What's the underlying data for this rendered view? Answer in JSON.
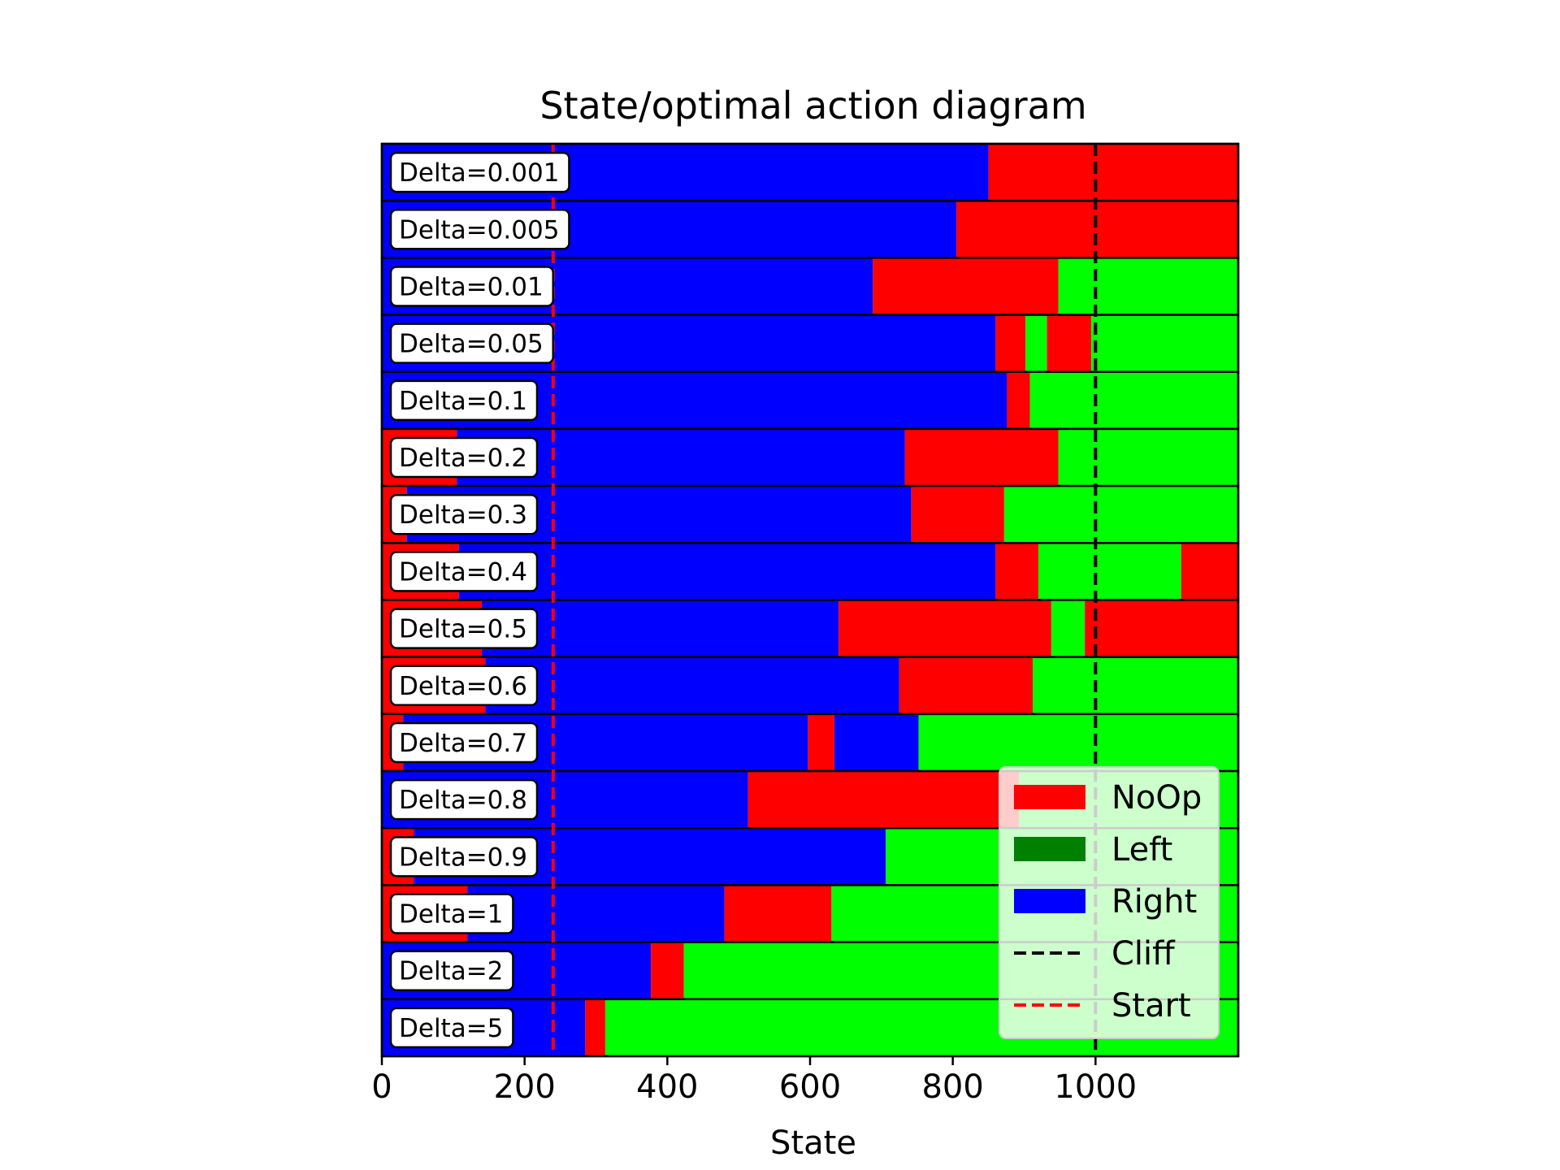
{
  "chart_data": {
    "type": "bar",
    "orientation": "horizontal-stacked-segments",
    "title": "State/optimal action diagram",
    "xlabel": "State",
    "ylabel": "",
    "xlim": [
      0,
      1200
    ],
    "xticks": [
      0,
      200,
      400,
      600,
      800,
      1000
    ],
    "grid": false,
    "legend_position": "lower-right",
    "colors": {
      "NoOp": "#ff0000",
      "Left": "#008000",
      "Right": "#0000ff",
      "LeftBar": "#00ff00",
      "Cliff": "#000000",
      "Start": "#ff0000"
    },
    "legend": [
      {
        "label": "NoOp",
        "kind": "patch",
        "color": "#ff0000"
      },
      {
        "label": "Left",
        "kind": "patch",
        "color": "#008000"
      },
      {
        "label": "Right",
        "kind": "patch",
        "color": "#0000ff"
      },
      {
        "label": "Cliff",
        "kind": "dashed-line",
        "color": "#000000"
      },
      {
        "label": "Start",
        "kind": "dashed-line",
        "color": "#ff0000"
      }
    ],
    "reference_lines": {
      "cliff": 1000,
      "start": 240
    },
    "rows": [
      {
        "label": "Delta=0.001",
        "segments": [
          [
            "Right",
            0,
            850
          ],
          [
            "NoOp",
            850,
            1200
          ]
        ]
      },
      {
        "label": "Delta=0.005",
        "segments": [
          [
            "Right",
            0,
            805
          ],
          [
            "NoOp",
            805,
            1200
          ]
        ]
      },
      {
        "label": "Delta=0.01",
        "segments": [
          [
            "Right",
            0,
            688
          ],
          [
            "NoOp",
            688,
            948
          ],
          [
            "Left",
            948,
            1200
          ]
        ]
      },
      {
        "label": "Delta=0.05",
        "segments": [
          [
            "Right",
            0,
            860
          ],
          [
            "NoOp",
            860,
            902
          ],
          [
            "Left",
            902,
            932
          ],
          [
            "NoOp",
            932,
            994
          ],
          [
            "Left",
            994,
            1200
          ]
        ]
      },
      {
        "label": "Delta=0.1",
        "segments": [
          [
            "Right",
            0,
            876
          ],
          [
            "NoOp",
            876,
            908
          ],
          [
            "Left",
            908,
            1200
          ]
        ]
      },
      {
        "label": "Delta=0.2",
        "segments": [
          [
            "NoOp",
            0,
            105
          ],
          [
            "Right",
            105,
            733
          ],
          [
            "NoOp",
            733,
            948
          ],
          [
            "Left",
            948,
            1200
          ]
        ]
      },
      {
        "label": "Delta=0.3",
        "segments": [
          [
            "NoOp",
            0,
            35
          ],
          [
            "Right",
            35,
            742
          ],
          [
            "NoOp",
            742,
            872
          ],
          [
            "Left",
            872,
            1200
          ]
        ]
      },
      {
        "label": "Delta=0.4",
        "segments": [
          [
            "NoOp",
            0,
            108
          ],
          [
            "Right",
            108,
            860
          ],
          [
            "NoOp",
            860,
            920
          ],
          [
            "Left",
            920,
            1120
          ],
          [
            "NoOp",
            1120,
            1200
          ]
        ]
      },
      {
        "label": "Delta=0.5",
        "segments": [
          [
            "NoOp",
            0,
            140
          ],
          [
            "Right",
            140,
            640
          ],
          [
            "NoOp",
            640,
            938
          ],
          [
            "Left",
            938,
            985
          ],
          [
            "NoOp",
            985,
            1200
          ]
        ]
      },
      {
        "label": "Delta=0.6",
        "segments": [
          [
            "NoOp",
            0,
            145
          ],
          [
            "Right",
            145,
            725
          ],
          [
            "NoOp",
            725,
            912
          ],
          [
            "Left",
            912,
            1200
          ]
        ]
      },
      {
        "label": "Delta=0.7",
        "segments": [
          [
            "NoOp",
            0,
            30
          ],
          [
            "Right",
            30,
            597
          ],
          [
            "NoOp",
            597,
            634
          ],
          [
            "Right",
            634,
            752
          ],
          [
            "Left",
            752,
            1200
          ]
        ]
      },
      {
        "label": "Delta=0.8",
        "segments": [
          [
            "Right",
            0,
            513
          ],
          [
            "NoOp",
            513,
            893
          ],
          [
            "Left",
            893,
            1200
          ]
        ]
      },
      {
        "label": "Delta=0.9",
        "segments": [
          [
            "NoOp",
            0,
            45
          ],
          [
            "Right",
            45,
            706
          ],
          [
            "Left",
            706,
            1200
          ]
        ]
      },
      {
        "label": "Delta=1",
        "segments": [
          [
            "NoOp",
            0,
            120
          ],
          [
            "Right",
            120,
            480
          ],
          [
            "NoOp",
            480,
            630
          ],
          [
            "Left",
            630,
            1200
          ]
        ]
      },
      {
        "label": "Delta=2",
        "segments": [
          [
            "Right",
            0,
            377
          ],
          [
            "NoOp",
            377,
            423
          ],
          [
            "Left",
            423,
            1200
          ]
        ]
      },
      {
        "label": "Delta=5",
        "segments": [
          [
            "Right",
            0,
            285
          ],
          [
            "NoOp",
            285,
            313
          ],
          [
            "Left",
            313,
            1200
          ]
        ]
      }
    ]
  }
}
